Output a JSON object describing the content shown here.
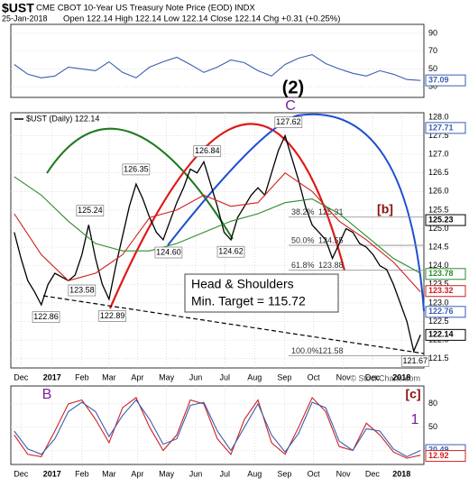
{
  "header": {
    "symbol": "$UST",
    "title": "CME CBOT 10-Year US Treasury Note Price (EOD) INDX",
    "date": "25-Jan-2018",
    "quote": "Open 122.14 High 122.14 Low 122.14 Close 122.14 Chg +0.31 (+0.25%)"
  },
  "watermark": "© StockCharts.com",
  "chart_data": [
    {
      "type": "line",
      "xlim": [
        -0.5,
        60.5
      ],
      "ylim": [
        18,
        100
      ],
      "yticks": [
        30,
        50,
        70,
        90
      ],
      "series": [
        {
          "color": "#3a5fb0",
          "x": [
            0,
            2,
            4,
            6,
            8,
            10,
            12,
            14,
            16,
            18,
            20,
            22,
            24,
            26,
            28,
            30,
            32,
            34,
            36,
            38,
            40,
            42,
            44,
            46,
            48,
            50,
            52,
            54,
            56,
            58,
            60
          ],
          "values": [
            55,
            44,
            40,
            42,
            52,
            50,
            48,
            58,
            46,
            40,
            52,
            58,
            63,
            55,
            46,
            52,
            60,
            57,
            48,
            42,
            55,
            62,
            66,
            56,
            50,
            45,
            42,
            48,
            44,
            38,
            37
          ]
        }
      ],
      "value_tags": [
        {
          "value": 37.09,
          "color": "#3a5fb0"
        }
      ]
    },
    {
      "type": "line",
      "xlim": [
        -0.5,
        60.5
      ],
      "ylim": [
        121.25,
        128.12
      ],
      "xticks": [
        {
          "value": 1,
          "label": "Dec"
        },
        {
          "value": 5.6,
          "label": "2017"
        },
        {
          "value": 10,
          "label": "Feb"
        },
        {
          "value": 14,
          "label": "Mar"
        },
        {
          "value": 18.2,
          "label": "Apr"
        },
        {
          "value": 22.5,
          "label": "May"
        },
        {
          "value": 26.8,
          "label": "Jun"
        },
        {
          "value": 31.1,
          "label": "Jul"
        },
        {
          "value": 35.5,
          "label": "Aug"
        },
        {
          "value": 39.9,
          "label": "Sep"
        },
        {
          "value": 44.2,
          "label": "Oct"
        },
        {
          "value": 48.6,
          "label": "Nov"
        },
        {
          "value": 52.9,
          "label": "Dec"
        },
        {
          "value": 57.2,
          "label": "2018"
        }
      ],
      "yticks": [
        121.5,
        {
          "value": 122,
          "label": "122.0"
        },
        122.5,
        {
          "value": 123,
          "label": "123.0"
        },
        123.5,
        {
          "value": 124,
          "label": "124.0"
        },
        124.5,
        {
          "value": 125,
          "label": "125.0"
        },
        125.5,
        {
          "value": 126,
          "label": "126.0"
        },
        126.5,
        {
          "value": 127,
          "label": "127.0"
        },
        127.5,
        {
          "value": 128,
          "label": "128.0"
        }
      ],
      "series": [
        {
          "name": "$UST (Daily) 122.14",
          "color": "#000000",
          "x": [
            0,
            1,
            2,
            3,
            4,
            5,
            6,
            7,
            8,
            9,
            10,
            11,
            12,
            13,
            14,
            15,
            16,
            17,
            18,
            19,
            20,
            21,
            22,
            23,
            24,
            25,
            26,
            27,
            28,
            29,
            30,
            31,
            32,
            33,
            34,
            35,
            36,
            37,
            38,
            39,
            40,
            41,
            42,
            43,
            44,
            45,
            46,
            47,
            48,
            49,
            50,
            51,
            52,
            53,
            54,
            55,
            56,
            57,
            58,
            59,
            60
          ],
          "values": [
            124.9,
            124.2,
            123.6,
            123.3,
            122.95,
            123.5,
            123.8,
            123.7,
            123.6,
            123.75,
            124.3,
            125.1,
            124.2,
            123.5,
            123.1,
            124.0,
            124.8,
            125.6,
            126.2,
            125.8,
            125.3,
            124.9,
            124.7,
            125.2,
            125.7,
            126.1,
            126.6,
            126.5,
            126.8,
            126.2,
            125.6,
            124.9,
            124.7,
            125.3,
            125.6,
            125.9,
            126.1,
            125.9,
            126.5,
            127.1,
            127.5,
            126.9,
            126.3,
            125.6,
            125.1,
            124.9,
            124.7,
            124.2,
            124.6,
            125.0,
            124.9,
            124.6,
            124.5,
            124.3,
            124.0,
            123.9,
            123.5,
            123.0,
            122.5,
            121.7,
            122.14
          ]
        },
        {
          "color": "#d02020",
          "x": [
            0,
            4,
            8,
            12,
            16,
            20,
            24,
            28,
            32,
            36,
            40,
            44,
            48,
            52,
            56,
            60
          ],
          "values": [
            125.4,
            124.3,
            123.6,
            123.8,
            124.3,
            125.3,
            125.5,
            125.9,
            125.6,
            125.7,
            126.5,
            126.0,
            125.2,
            124.7,
            124.1,
            123.3
          ]
        },
        {
          "color": "#2e8b2e",
          "x": [
            0,
            4,
            8,
            12,
            16,
            20,
            24,
            28,
            32,
            36,
            40,
            44,
            48,
            52,
            56,
            60
          ],
          "values": [
            126.4,
            125.9,
            125.2,
            124.6,
            124.4,
            124.4,
            124.6,
            124.9,
            125.2,
            125.4,
            125.7,
            125.8,
            125.4,
            124.8,
            124.2,
            123.8
          ]
        }
      ],
      "point_labels": [
        {
          "x": 4.7,
          "value": 122.86
        },
        {
          "x": 10,
          "value": 123.58
        },
        {
          "x": 11.2,
          "value": 125.24
        },
        {
          "x": 14.5,
          "value": 122.89
        },
        {
          "x": 18,
          "value": 126.35
        },
        {
          "x": 22.8,
          "value": 124.6,
          "label": "124.60"
        },
        {
          "x": 28.5,
          "value": 126.84
        },
        {
          "x": 32,
          "value": 124.62
        },
        {
          "x": 40.5,
          "value": 127.62
        },
        {
          "x": 59.2,
          "value": 121.67
        }
      ],
      "fib_levels": [
        {
          "label": "38.2%",
          "value": 125.31
        },
        {
          "label": "50.0%",
          "value": 124.55
        },
        {
          "label": "61.8%",
          "value": 123.88
        },
        {
          "label": "100.0%",
          "value": 121.58
        }
      ],
      "value_tags": [
        {
          "value": 127.71,
          "color": "#3a5fb0"
        },
        {
          "value": 125.23,
          "color": "#000000"
        },
        {
          "value": 123.78,
          "color": "#2e8b2e"
        },
        {
          "value": 123.32,
          "color": "#d02020"
        },
        {
          "value": 122.76,
          "color": "#3a5fb0"
        },
        {
          "value": 122.14,
          "color": "#000000"
        }
      ],
      "annotations": [
        "(2)",
        "C",
        "[b]",
        "Head & Shoulders",
        "Min. Target = 115.72"
      ]
    },
    {
      "type": "line",
      "xlim": [
        -0.5,
        60.5
      ],
      "ylim": [
        2,
        103
      ],
      "yticks": [
        20,
        50,
        80
      ],
      "xticks": [
        {
          "value": 1,
          "label": "Dec"
        },
        {
          "value": 5.6,
          "label": "2017"
        },
        {
          "value": 10,
          "label": "Feb"
        },
        {
          "value": 14,
          "label": "Mar"
        },
        {
          "value": 18.2,
          "label": "Apr"
        },
        {
          "value": 22.5,
          "label": "May"
        },
        {
          "value": 26.8,
          "label": "Jun"
        },
        {
          "value": 31.1,
          "label": "Jul"
        },
        {
          "value": 35.5,
          "label": "Aug"
        },
        {
          "value": 39.9,
          "label": "Sep"
        },
        {
          "value": 44.2,
          "label": "Oct"
        },
        {
          "value": 48.6,
          "label": "Nov"
        },
        {
          "value": 52.9,
          "label": "Dec"
        },
        {
          "value": 57.2,
          "label": "2018"
        }
      ],
      "series": [
        {
          "color": "#d02020",
          "x": [
            0,
            2,
            4,
            6,
            8,
            10,
            12,
            14,
            16,
            18,
            20,
            22,
            24,
            26,
            28,
            30,
            32,
            34,
            36,
            38,
            40,
            42,
            44,
            46,
            48,
            50,
            52,
            54,
            56,
            58,
            60
          ],
          "values": [
            40,
            15,
            12,
            45,
            80,
            85,
            60,
            30,
            75,
            88,
            50,
            20,
            40,
            85,
            80,
            35,
            15,
            60,
            85,
            30,
            15,
            50,
            88,
            70,
            25,
            20,
            55,
            40,
            18,
            10,
            14
          ]
        },
        {
          "color": "#3a5fb0",
          "x": [
            0,
            2,
            4,
            6,
            8,
            10,
            12,
            14,
            16,
            18,
            20,
            22,
            24,
            26,
            28,
            30,
            32,
            34,
            36,
            38,
            40,
            42,
            44,
            46,
            48,
            50,
            52,
            54,
            56,
            58,
            60
          ],
          "values": [
            45,
            22,
            15,
            35,
            70,
            82,
            70,
            38,
            65,
            85,
            60,
            28,
            35,
            78,
            82,
            45,
            20,
            50,
            80,
            40,
            18,
            42,
            82,
            75,
            32,
            20,
            48,
            45,
            22,
            12,
            20
          ]
        }
      ],
      "value_tags": [
        {
          "value": 20.49,
          "color": "#3a5fb0"
        },
        {
          "value": 12.92,
          "color": "#d02020"
        }
      ],
      "annotations": [
        "B",
        "[c]",
        "1"
      ]
    }
  ]
}
